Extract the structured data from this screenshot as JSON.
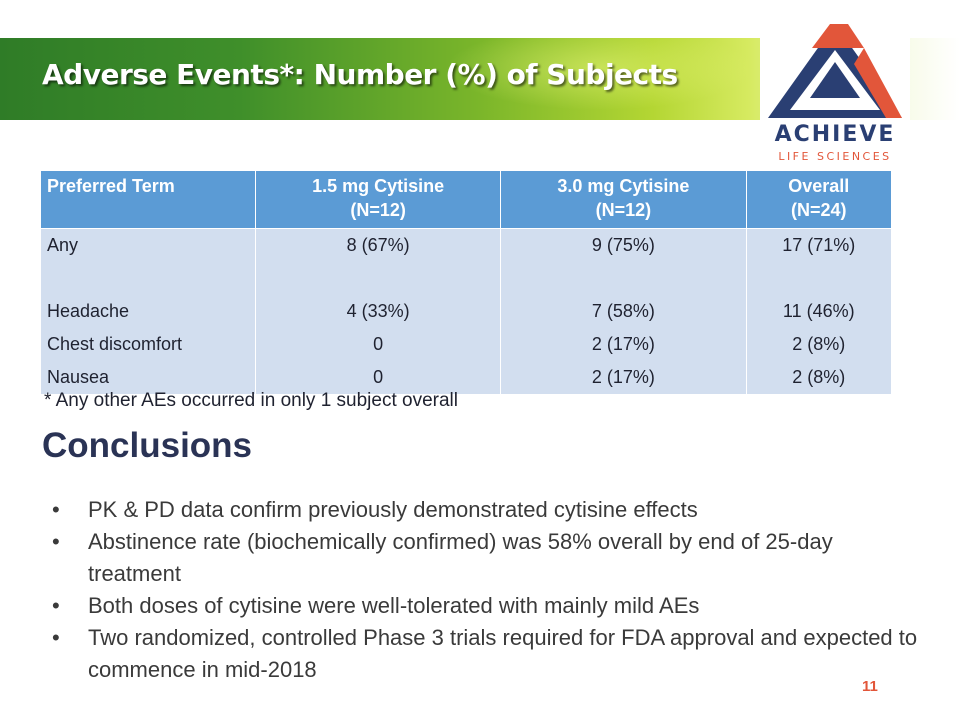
{
  "slide": {
    "title": "Adverse Events*: Number (%) of Subjects",
    "page_number": "11"
  },
  "logo": {
    "name": "ACHIEVE",
    "tagline": "LIFE SCIENCES",
    "colors": {
      "navy": "#2a3f73",
      "orange": "#e2563a"
    }
  },
  "table": {
    "headers": [
      {
        "line1": "Preferred Term",
        "line2": ""
      },
      {
        "line1": "1.5 mg Cytisine",
        "line2": "(N=12)"
      },
      {
        "line1": "3.0 mg Cytisine",
        "line2": "(N=12)"
      },
      {
        "line1": "Overall",
        "line2": "(N=24)"
      }
    ],
    "rows": [
      {
        "term": "Any",
        "low": "8 (67%)",
        "high": "9 (75%)",
        "overall": "17 (71%)"
      },
      {
        "term": "",
        "low": "",
        "high": "",
        "overall": ""
      },
      {
        "term": "Headache",
        "low": "4 (33%)",
        "high": "7 (58%)",
        "overall": "11 (46%)"
      },
      {
        "term": "Chest discomfort",
        "low": "0",
        "high": "2 (17%)",
        "overall": "2 (8%)"
      },
      {
        "term": "Nausea",
        "low": "0",
        "high": "2 (17%)",
        "overall": "2 (8%)"
      }
    ]
  },
  "footnote": "* Any other AEs occurred in only 1 subject overall",
  "conclusions": {
    "heading": "Conclusions",
    "bullet_glyph": "•",
    "items": [
      "PK & PD data confirm previously demonstrated cytisine effects",
      "Abstinence rate (biochemically confirmed) was 58% overall by end of 25-day treatment",
      "Both doses of cytisine were well-tolerated with mainly mild AEs",
      "Two randomized, controlled Phase 3 trials required for FDA approval and expected to commence in mid-2018"
    ]
  },
  "colors": {
    "banner_dark_green": "#2f7c27",
    "banner_light_green": "#b4d633",
    "table_header_bg": "#5b9bd5",
    "table_body_bg": "#d2deef",
    "heading_navy": "#2a3355",
    "page_number": "#e2563a"
  }
}
